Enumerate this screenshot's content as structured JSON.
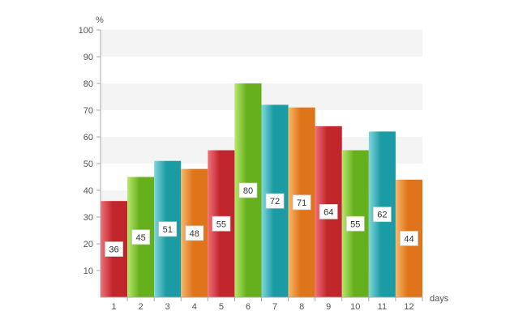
{
  "chart_data": {
    "type": "bar",
    "title": "",
    "xlabel": "days",
    "ylabel": "%",
    "ylim": [
      0,
      100
    ],
    "yticks": [
      10,
      20,
      30,
      40,
      50,
      60,
      70,
      80,
      90,
      100
    ],
    "grid": "alternating horizontal bands",
    "categories": [
      "1",
      "2",
      "3",
      "4",
      "5",
      "6",
      "7",
      "8",
      "9",
      "10",
      "11",
      "12"
    ],
    "values": [
      36,
      45,
      51,
      48,
      55,
      80,
      72,
      71,
      64,
      55,
      62,
      44
    ],
    "data_labels": [
      "36",
      "45",
      "51",
      "48",
      "55",
      "80",
      "72",
      "71",
      "64",
      "55",
      "62",
      "44"
    ],
    "bar_colors": [
      "#c0262b",
      "#66b01e",
      "#1b9ba3",
      "#e0741a",
      "#c0262b",
      "#66b01e",
      "#1b9ba3",
      "#e0741a",
      "#c0262b",
      "#66b01e",
      "#1b9ba3",
      "#e0741a"
    ],
    "bar_highlight_colors": [
      "#f0707a",
      "#b8e86a",
      "#7fd8dd",
      "#f8b86a",
      "#f0707a",
      "#b8e86a",
      "#7fd8dd",
      "#f8b86a",
      "#f0707a",
      "#b8e86a",
      "#7fd8dd",
      "#f8b86a"
    ],
    "band_color": "#f4f4f4",
    "axis_color": "#aaaaaa",
    "text_color": "#555555"
  }
}
